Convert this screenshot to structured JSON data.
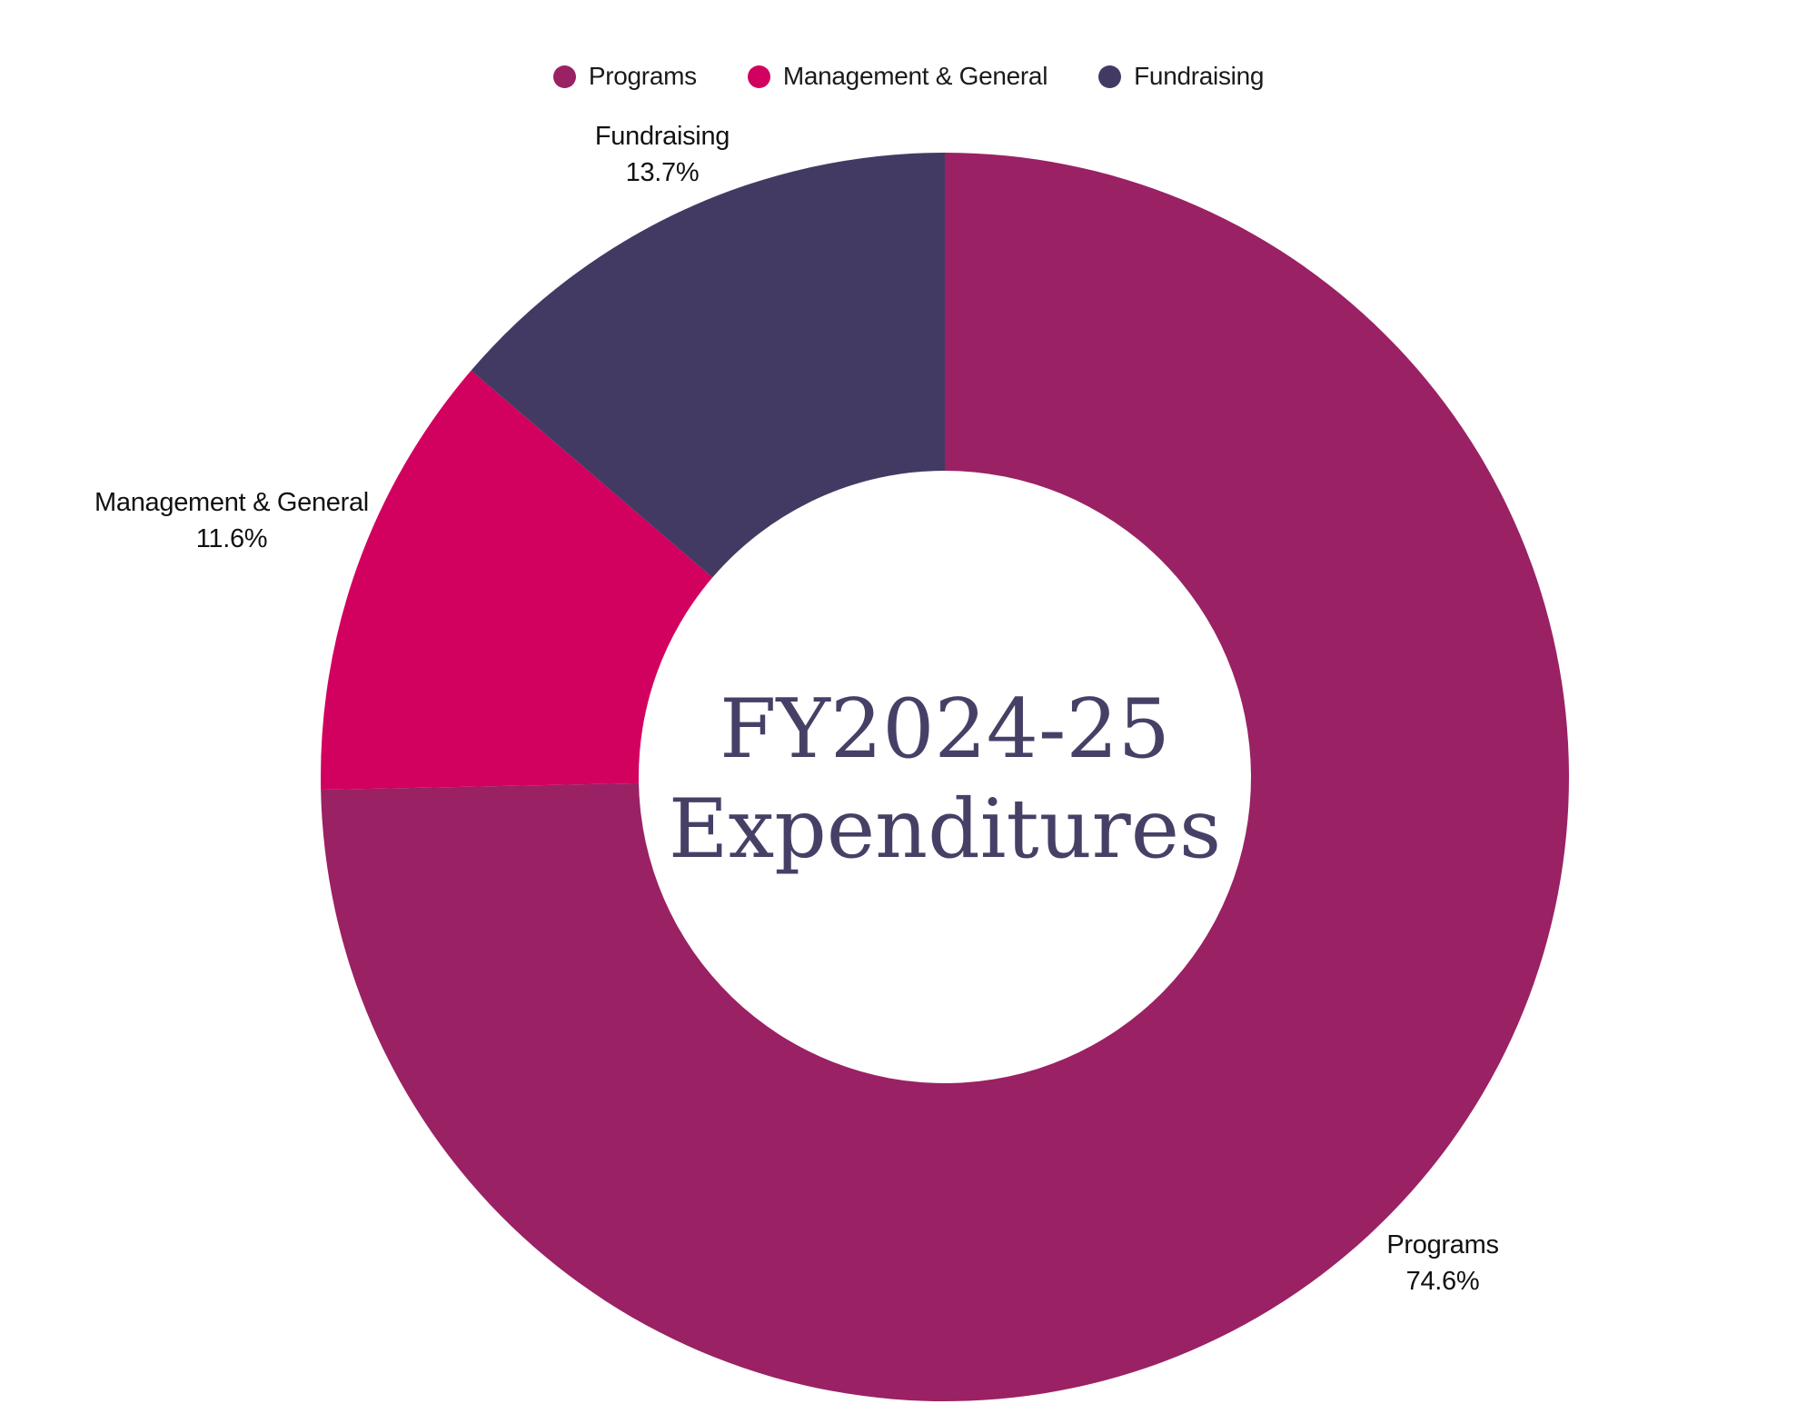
{
  "chart_data": {
    "type": "pie",
    "variant": "donut",
    "title": "FY2024-25 Expenditures",
    "center_title_lines": [
      "FY2024-25",
      "Expenditures"
    ],
    "categories": [
      "Programs",
      "Management & General",
      "Fundraising"
    ],
    "values": [
      74.6,
      11.6,
      13.7
    ],
    "unit": "%",
    "segments": [
      {
        "label": "Programs",
        "value": 74.6,
        "pct_label": "74.6%",
        "color": "#9a2164"
      },
      {
        "label": "Management & General",
        "value": 11.6,
        "pct_label": "11.6%",
        "color": "#d2005f"
      },
      {
        "label": "Fundraising",
        "value": 13.7,
        "pct_label": "13.7%",
        "color": "#433a63"
      }
    ],
    "start_angle_deg": 0,
    "direction": "clockwise",
    "inner_radius_ratio": 0.49,
    "legend_position": "top",
    "labels_position": "outside",
    "title_color": "#474066",
    "label_color": "#111111",
    "background_color": "#ffffff"
  }
}
